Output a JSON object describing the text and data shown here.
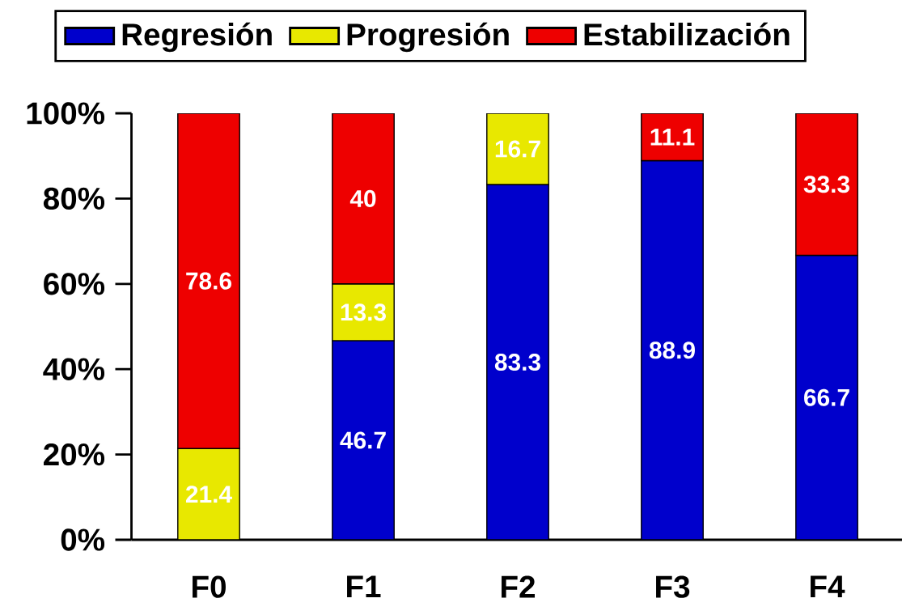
{
  "chart_data": {
    "type": "bar",
    "stacked": true,
    "categories": [
      "F0",
      "F1",
      "F2",
      "F3",
      "F4"
    ],
    "series": [
      {
        "name": "Regresión",
        "color": "#0000cc",
        "values": [
          null,
          46.7,
          83.3,
          88.9,
          66.7
        ]
      },
      {
        "name": "Progresión",
        "color": "#e8e800",
        "values": [
          21.4,
          13.3,
          16.7,
          null,
          null
        ]
      },
      {
        "name": "Estabilización",
        "color": "#ee0000",
        "values": [
          78.6,
          40,
          null,
          11.1,
          33.3
        ]
      }
    ],
    "ylim": [
      0,
      100
    ],
    "yticks": [
      {
        "value": 0,
        "label": "0%"
      },
      {
        "value": 20,
        "label": "20%"
      },
      {
        "value": 40,
        "label": "40%"
      },
      {
        "value": 60,
        "label": "60%"
      },
      {
        "value": 80,
        "label": "80%"
      },
      {
        "value": 100,
        "label": "100%"
      }
    ],
    "data_labels": true,
    "legend": "top",
    "grid": false
  }
}
